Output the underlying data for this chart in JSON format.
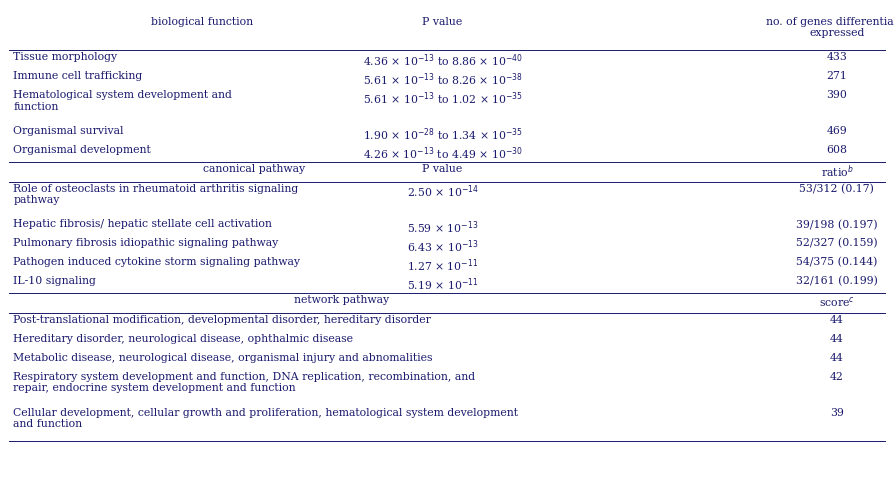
{
  "background_color": "#ffffff",
  "text_color": "#1a1a6e",
  "font_size": 7.8,
  "figsize": [
    8.94,
    4.79
  ],
  "dpi": 100,
  "section1_header": [
    "biological function",
    "P value",
    "no. of genes differentially\nexpressed"
  ],
  "section1_rows": [
    [
      "Tissue morphology",
      "4.36 × 10$^{-13}$ to 8.86 × 10$^{-40}$",
      "433"
    ],
    [
      "Immune cell trafficking",
      "5.61 × 10$^{-13}$ to 8.26 × 10$^{-38}$",
      "271"
    ],
    [
      "Hematological system development and\nfunction",
      "5.61 × 10$^{-13}$ to 1.02 × 10$^{-35}$",
      "390"
    ],
    [
      "Organismal survival",
      "1.90 × 10$^{-28}$ to 1.34 × 10$^{-35}$",
      "469"
    ],
    [
      "Organismal development",
      "4.26 × 10$^{-13}$ to 4.49 × 10$^{-30}$",
      "608"
    ]
  ],
  "section1_row_lines": [
    1,
    1,
    2,
    1,
    1
  ],
  "section2_header": [
    "canonical pathway",
    "P value",
    "ratio$^{b}$"
  ],
  "section2_rows": [
    [
      "Role of osteoclasts in rheumatoid arthritis signaling\npathway",
      "2.50 × 10$^{-14}$",
      "53/312 (0.17)"
    ],
    [
      "Hepatic fibrosis/ hepatic stellate cell activation",
      "5.59 × 10$^{-13}$",
      "39/198 (0.197)"
    ],
    [
      "Pulmonary fibrosis idiopathic signaling pathway",
      "6.43 × 10$^{-13}$",
      "52/327 (0.159)"
    ],
    [
      "Pathogen induced cytokine storm signaling pathway",
      "1.27 × 10$^{-11}$",
      "54/375 (0.144)"
    ],
    [
      "IL-10 signaling",
      "5.19 × 10$^{-11}$",
      "32/161 (0.199)"
    ]
  ],
  "section2_row_lines": [
    2,
    1,
    1,
    1,
    1
  ],
  "section3_header": [
    "network pathway",
    "",
    "score$^{c}$"
  ],
  "section3_rows": [
    [
      "Post-translational modification, developmental disorder, hereditary disorder",
      "",
      "44"
    ],
    [
      "Hereditary disorder, neurological disease, ophthalmic disease",
      "",
      "44"
    ],
    [
      "Metabolic disease, neurological disease, organismal injury and abnomalities",
      "",
      "44"
    ],
    [
      "Respiratory system development and function, DNA replication, recombination, and\nrepair, endocrine system development and function",
      "",
      "42"
    ],
    [
      "Cellular development, cellular growth and proliferation, hematological system development\nand function",
      "",
      "39"
    ]
  ],
  "section3_row_lines": [
    1,
    1,
    1,
    2,
    2
  ]
}
